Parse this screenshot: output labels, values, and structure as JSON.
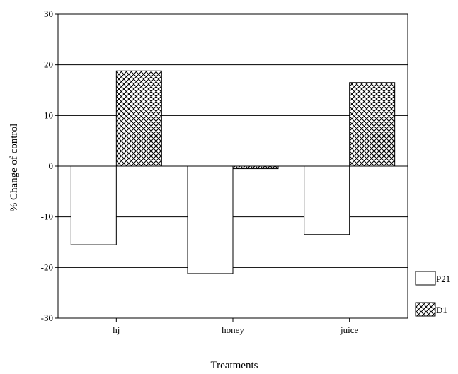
{
  "chart_data": {
    "type": "bar",
    "title": "",
    "xlabel": "Treatments",
    "ylabel": "% Change of control",
    "categories": [
      "hj",
      "honey",
      "juice"
    ],
    "series": [
      {
        "name": "P21",
        "values": [
          -15.5,
          -21.2,
          -13.5
        ],
        "pattern": "none"
      },
      {
        "name": "D1",
        "values": [
          18.8,
          -0.5,
          16.5
        ],
        "pattern": "crosshatch"
      }
    ],
    "ylim": [
      -30,
      30
    ],
    "yticks": [
      -30,
      -20,
      -10,
      0,
      10,
      20,
      30
    ],
    "grid": "horizontal",
    "legend_position": "bottom-right",
    "colors": {
      "fill": "#ffffff",
      "line": "#000000"
    }
  }
}
